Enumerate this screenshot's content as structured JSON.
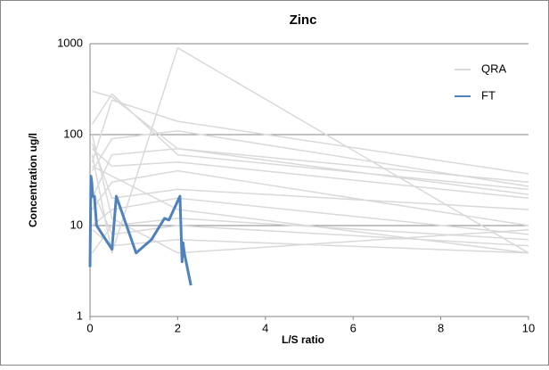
{
  "chart_data": {
    "type": "line",
    "title": "Zinc",
    "xlabel": "L/S ratio",
    "ylabel": "Concentration ug/l",
    "xlim": [
      0,
      10
    ],
    "xticks": [
      0,
      2,
      4,
      6,
      8,
      10
    ],
    "ylim": [
      1,
      1000
    ],
    "yticks": [
      1,
      10,
      100,
      1000
    ],
    "yscale": "log",
    "grid": true,
    "legend": "upper right",
    "series": [
      {
        "name": "QRA",
        "color": "#d9d9d9",
        "x": [
          0.05,
          0.5,
          2,
          10,
          null,
          0.05,
          0.5,
          2,
          10,
          null,
          0.05,
          0.5,
          2,
          10,
          null,
          0.05,
          0.5,
          2,
          10,
          null,
          0.05,
          0.5,
          2,
          10,
          null,
          0.05,
          0.5,
          2,
          10,
          null,
          0.05,
          0.5,
          2,
          10,
          null,
          0.05,
          0.5,
          2,
          10,
          null,
          0.05,
          0.5,
          2,
          10,
          null,
          0.05,
          0.5,
          2,
          10,
          null,
          0.05,
          0.5,
          2,
          10,
          null,
          0.05,
          0.5,
          2,
          10,
          null,
          0.05,
          0.5,
          2,
          10,
          null,
          0.05,
          0.5,
          2,
          10,
          null,
          0.05,
          0.5,
          2,
          10
        ],
        "values": [
          130,
          280,
          60,
          25,
          null,
          300,
          260,
          70,
          30,
          null,
          60,
          5,
          900,
          5,
          null,
          50,
          240,
          140,
          37,
          null,
          40,
          90,
          110,
          27,
          null,
          20,
          60,
          70,
          22,
          null,
          15,
          30,
          40,
          10,
          null,
          80,
          20,
          25,
          15,
          null,
          10,
          15,
          20,
          8,
          null,
          5,
          10,
          12,
          7,
          null,
          25,
          8,
          10,
          6,
          null,
          45,
          35,
          15,
          5,
          null,
          9,
          6,
          7,
          5,
          null,
          70,
          45,
          50,
          20,
          null,
          100,
          12,
          5,
          9
        ]
      },
      {
        "name": "FT",
        "color": "#4f81bd",
        "x": [
          0,
          0.02,
          0.04,
          0.06,
          0.1,
          0.15,
          0.5,
          0.6,
          1.05,
          1.4,
          1.7,
          1.8,
          2.05,
          2.1,
          2.12,
          2.15,
          2.3
        ],
        "values": [
          3.5,
          35,
          30,
          21,
          21,
          10,
          5.5,
          21,
          5,
          7,
          12,
          11.5,
          21,
          4,
          6.5,
          5,
          2.2
        ]
      }
    ]
  }
}
